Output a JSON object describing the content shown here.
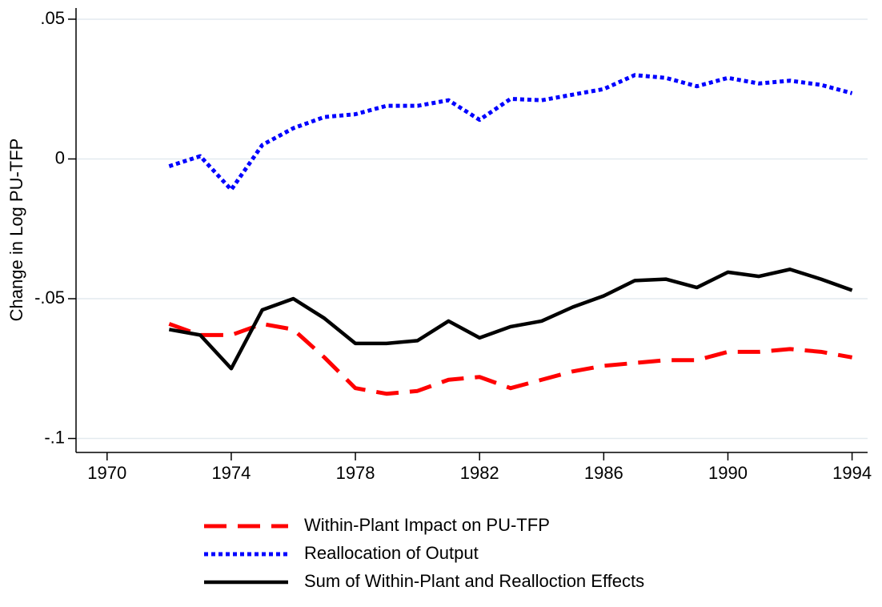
{
  "chart_data": {
    "type": "line",
    "y_label": "Change in Log PU-TFP",
    "x": [
      1972,
      1973,
      1974,
      1975,
      1976,
      1977,
      1978,
      1979,
      1980,
      1981,
      1982,
      1983,
      1984,
      1985,
      1986,
      1987,
      1988,
      1989,
      1990,
      1991,
      1992,
      1993,
      1994
    ],
    "series": [
      {
        "name": "Within-Plant Impact on PU-TFP",
        "color": "#ff0000",
        "dash": "dashed",
        "values": [
          -0.059,
          -0.063,
          -0.063,
          -0.059,
          -0.061,
          -0.071,
          -0.082,
          -0.084,
          -0.083,
          -0.079,
          -0.078,
          -0.082,
          -0.079,
          -0.076,
          -0.074,
          -0.073,
          -0.072,
          -0.072,
          -0.069,
          -0.069,
          -0.068,
          -0.069,
          -0.071
        ]
      },
      {
        "name": "Reallocation of Output",
        "color": "#0000ff",
        "dash": "dotted",
        "values": [
          -0.0026,
          0.001,
          -0.011,
          0.005,
          0.011,
          0.015,
          0.016,
          0.019,
          0.019,
          0.021,
          0.014,
          0.0215,
          0.021,
          0.023,
          0.025,
          0.03,
          0.029,
          0.026,
          0.029,
          0.027,
          0.028,
          0.0265,
          0.0235
        ]
      },
      {
        "name": "Sum of Within-Plant and Realloction Effects",
        "color": "#000000",
        "dash": "solid",
        "values": [
          -0.061,
          -0.063,
          -0.075,
          -0.054,
          -0.05,
          -0.057,
          -0.066,
          -0.066,
          -0.065,
          -0.058,
          -0.064,
          -0.06,
          -0.058,
          -0.053,
          -0.049,
          -0.0435,
          -0.043,
          -0.046,
          -0.0405,
          -0.042,
          -0.0395,
          -0.043,
          -0.047
        ]
      }
    ],
    "xlim": [
      1969,
      1994.5
    ],
    "xticks": [
      1970,
      1974,
      1978,
      1982,
      1986,
      1990,
      1994
    ],
    "ylim": [
      -0.105,
      0.054
    ],
    "yticks": [
      {
        "value": -0.1,
        "label": "-.1"
      },
      {
        "value": -0.05,
        "label": "-.05"
      },
      0,
      {
        "value": 0.05,
        "label": ".05"
      }
    ],
    "grid": true,
    "legend_position": "bottom"
  }
}
